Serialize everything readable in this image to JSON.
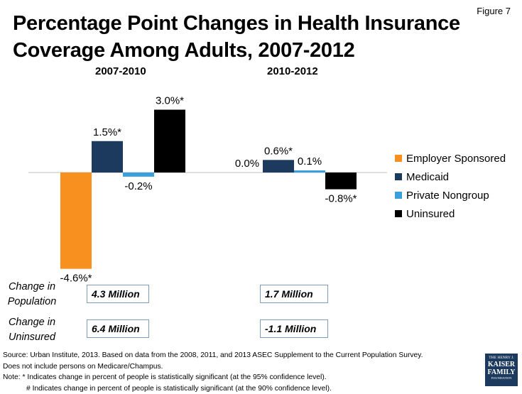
{
  "figure_label": "Figure 7",
  "title_line1": "Percentage Point Changes in Health Insurance",
  "title_line2": "Coverage Among Adults, 2007-2012",
  "colors": {
    "employer": "#f7901e",
    "medicaid": "#1c3a5e",
    "private": "#3aa0dd",
    "uninsured": "#000000",
    "axis": "#bfbfbf"
  },
  "chart_data": {
    "type": "bar",
    "title": "Percentage Point Changes in Health Insurance Coverage Among Adults, 2007-2012",
    "categories": [
      "2007-2010",
      "2010-2012"
    ],
    "series": [
      {
        "name": "Employer Sponsored",
        "values": [
          -4.6,
          0.0
        ],
        "labels": [
          "-4.6%*",
          "0.0%"
        ]
      },
      {
        "name": "Medicaid",
        "values": [
          1.5,
          0.6
        ],
        "labels": [
          "1.5%*",
          "0.6%*"
        ]
      },
      {
        "name": "Private Nongroup",
        "values": [
          -0.2,
          0.1
        ],
        "labels": [
          "-0.2%",
          "0.1%"
        ]
      },
      {
        "name": "Uninsured",
        "values": [
          3.0,
          -0.8
        ],
        "labels": [
          "3.0%*",
          "-0.8%*"
        ]
      }
    ],
    "ylim": [
      -5,
      4
    ],
    "xlabel": "",
    "ylabel": "",
    "legend_position": "right"
  },
  "legend": {
    "employer": "Employer Sponsored",
    "medicaid": "Medicaid",
    "private": "Private Nongroup",
    "uninsured": "Uninsured"
  },
  "change_population": {
    "label_line1": "Change in",
    "label_line2": "Population",
    "period1": "4.3 Million",
    "period2": "1.7 Million"
  },
  "change_uninsured": {
    "label_line1": "Change in",
    "label_line2": "Uninsured",
    "period1": "6.4 Million",
    "period2": "-1.1 Million"
  },
  "source": {
    "line1": "Source: Urban Institute, 2013. Based on data from the 2008, 2011, and 2013 ASEC Supplement to the Current Population Survey.",
    "line2": "Does not include persons on Medicare/Champus.",
    "line3": "Note: * Indicates change in percent of people is statistically significant (at the 95% confidence level).",
    "line4": "# Indicates change in percent of people is statistically significant (at the 90% confidence level)."
  },
  "logo": {
    "line1": "THE HENRY J.",
    "line2": "KAISER",
    "line3": "FAMILY",
    "line4": "FOUNDATION"
  }
}
